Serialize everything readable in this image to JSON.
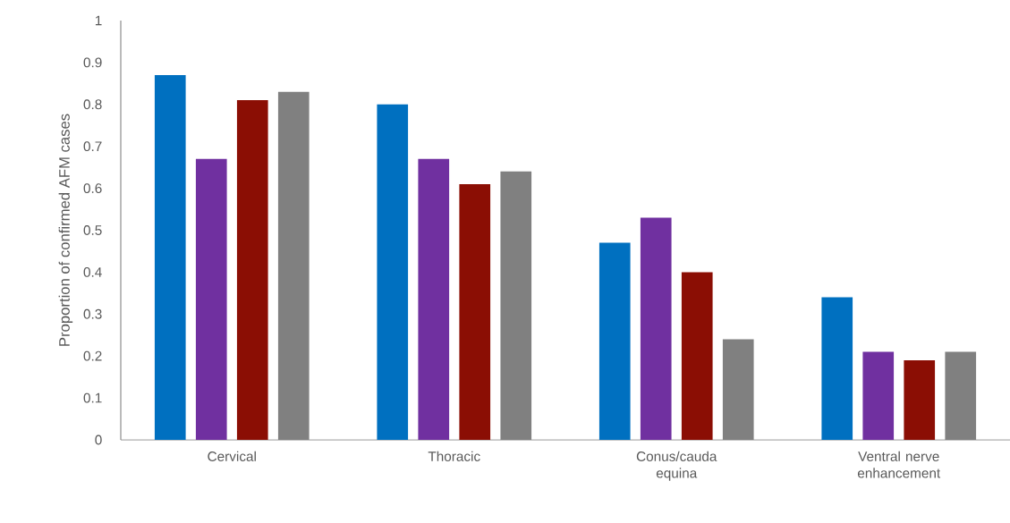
{
  "chart_data": {
    "type": "bar",
    "ylabel": "Proportion of confirmed AFM cases",
    "categories": [
      "Cervical",
      "Thoracic",
      "Conus/cauda equina",
      "Ventral nerve enhancement"
    ],
    "series": [
      {
        "color": "#0070c0",
        "values": [
          0.87,
          0.8,
          0.47,
          0.34
        ]
      },
      {
        "color": "#7030a0",
        "values": [
          0.67,
          0.67,
          0.53,
          0.21
        ]
      },
      {
        "color": "#8b0e04",
        "values": [
          0.81,
          0.61,
          0.4,
          0.19
        ]
      },
      {
        "color": "#808080",
        "values": [
          0.83,
          0.64,
          0.24,
          0.21
        ]
      }
    ],
    "ylim": [
      0,
      1
    ],
    "yticks": [
      0,
      0.1,
      0.2,
      0.3,
      0.4,
      0.5,
      0.6,
      0.7,
      0.8,
      0.9,
      1
    ]
  }
}
